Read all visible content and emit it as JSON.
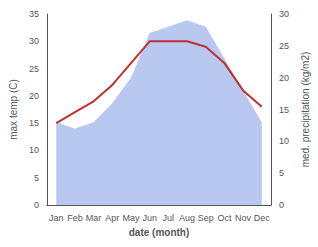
{
  "chart_data": {
    "type": "line",
    "xlabel": "date (month)",
    "ylabel": "max temp (C)",
    "y2label": "med. precipitation (kg/m2)",
    "categories": [
      "Jan",
      "Feb",
      "Mar",
      "Apr",
      "May",
      "Jun",
      "Jul",
      "Aug",
      "Sep",
      "Oct",
      "Nov",
      "Dec"
    ],
    "series": [
      {
        "type": "area",
        "color": "#b8c8f0",
        "axis": "y2",
        "values": [
          13,
          12,
          13,
          16,
          20,
          27,
          28,
          29,
          28,
          23,
          18,
          13
        ]
      },
      {
        "type": "line",
        "color": "#c03030",
        "values": [
          15,
          17,
          19,
          22,
          26,
          30,
          30,
          30,
          29,
          26,
          21,
          18
        ]
      }
    ],
    "ylim": [
      0,
      35
    ],
    "yticks": [
      0,
      5,
      10,
      15,
      20,
      25,
      30,
      35
    ],
    "y2lim": [
      0,
      30
    ],
    "y2ticks": [
      0,
      5,
      10,
      15,
      20,
      25,
      30
    ],
    "grid": false
  }
}
